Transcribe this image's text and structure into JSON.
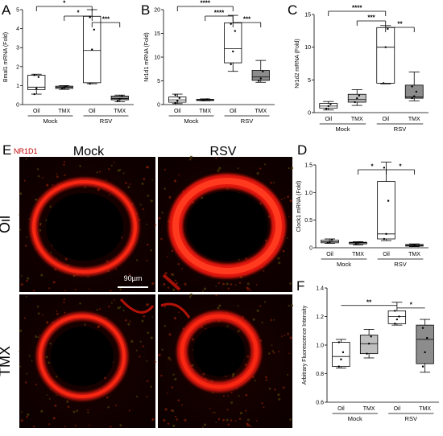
{
  "figure": {
    "micrograph_panel": {
      "letter": "E",
      "stain": "NR1D1",
      "columns": [
        "Mock",
        "RSV"
      ],
      "rows": [
        "Oil",
        "TMX"
      ],
      "scale_bar": "90µm"
    }
  },
  "colors": {
    "oil_box": "#ffffff",
    "tmx_box": "#bfbfbf",
    "rsv_tmx_box": "#8c8c8c",
    "tissue_red": "#e0160c",
    "stain_label": "#c00000"
  },
  "chart_data": [
    {
      "panel": "A",
      "type": "box",
      "ylabel": "Bmal1 mRNA (Fold)",
      "ylim": [
        0,
        5
      ],
      "yticks": [
        0,
        1,
        2,
        3,
        4,
        5
      ],
      "categories": [
        "Oil",
        "TMX",
        "Oil",
        "TMX"
      ],
      "groups": [
        "Mock",
        "RSV"
      ],
      "boxes": [
        {
          "min": 0.55,
          "q1": 0.78,
          "median": 0.92,
          "q3": 1.55,
          "max": 1.6,
          "points": [
            0.55,
            0.85,
            1.45,
            1.55
          ]
        },
        {
          "min": 0.8,
          "q1": 0.85,
          "median": 0.92,
          "q3": 0.97,
          "max": 1.0,
          "points": [
            0.85,
            0.9,
            0.95
          ]
        },
        {
          "min": 1.1,
          "q1": 1.15,
          "median": 2.85,
          "q3": 4.65,
          "max": 5.0,
          "points": [
            1.1,
            2.9,
            3.95,
            4.6
          ]
        },
        {
          "min": 0.15,
          "q1": 0.25,
          "median": 0.32,
          "q3": 0.45,
          "max": 0.5,
          "points": [
            0.2,
            0.3,
            0.45
          ]
        }
      ],
      "significance": [
        {
          "from": 0,
          "to": 2,
          "label": "*"
        },
        {
          "from": 1,
          "to": 2,
          "label": "*"
        },
        {
          "from": 2,
          "to": 3,
          "label": "***"
        }
      ]
    },
    {
      "panel": "B",
      "type": "box",
      "ylabel": "Nr1d1 mRNA (Fold)",
      "ylim": [
        0,
        20
      ],
      "yticks": [
        0,
        5,
        10,
        15,
        20
      ],
      "categories": [
        "Oil",
        "TMX",
        "Oil",
        "TMX"
      ],
      "groups": [
        "Mock",
        "RSV"
      ],
      "boxes": [
        {
          "min": 0.2,
          "q1": 0.5,
          "median": 1.0,
          "q3": 1.6,
          "max": 2.2,
          "points": [
            0.3,
            0.8,
            1.4,
            2.0
          ]
        },
        {
          "min": 0.8,
          "q1": 0.9,
          "median": 1.0,
          "q3": 1.1,
          "max": 1.2,
          "points": [
            0.9,
            1.0,
            1.1
          ]
        },
        {
          "min": 7.0,
          "q1": 8.8,
          "median": 11.8,
          "q3": 17.2,
          "max": 18.8,
          "points": [
            8.5,
            11.2,
            15.5,
            17.0
          ]
        },
        {
          "min": 4.7,
          "q1": 5.1,
          "median": 5.8,
          "q3": 7.2,
          "max": 9.3,
          "points": [
            5.0,
            5.5,
            7.0
          ]
        }
      ],
      "significance": [
        {
          "from": 0,
          "to": 2,
          "label": "****"
        },
        {
          "from": 1,
          "to": 2,
          "label": "****"
        },
        {
          "from": 2,
          "to": 3,
          "label": "***"
        }
      ]
    },
    {
      "panel": "C",
      "type": "box",
      "ylabel": "Nr1d2 mRNA (Fold)",
      "ylim": [
        0,
        15
      ],
      "yticks": [
        0,
        5,
        10,
        15
      ],
      "categories": [
        "Oil",
        "TMX",
        "Oil",
        "TMX"
      ],
      "groups": [
        "Mock",
        "RSV"
      ],
      "boxes": [
        {
          "min": 0.4,
          "q1": 0.7,
          "median": 1.0,
          "q3": 1.4,
          "max": 1.7,
          "points": [
            0.6,
            1.0,
            1.3
          ]
        },
        {
          "min": 1.1,
          "q1": 1.6,
          "median": 2.0,
          "q3": 2.8,
          "max": 3.5,
          "points": [
            1.6,
            2.2,
            2.6
          ]
        },
        {
          "min": 4.4,
          "q1": 4.5,
          "median": 10.0,
          "q3": 13.0,
          "max": 13.3,
          "points": [
            4.5,
            10.0,
            12.8
          ]
        },
        {
          "min": 1.8,
          "q1": 2.2,
          "median": 2.4,
          "q3": 4.2,
          "max": 6.2,
          "points": [
            2.2,
            2.5,
            3.2,
            4.0
          ]
        }
      ],
      "significance": [
        {
          "from": 0,
          "to": 2,
          "label": "****"
        },
        {
          "from": 1,
          "to": 2,
          "label": "***"
        },
        {
          "from": 2,
          "to": 3,
          "label": "**"
        }
      ]
    },
    {
      "panel": "D",
      "type": "box",
      "ylabel": "Clock1 mRNA (Fold)",
      "ylim": [
        0,
        15
      ],
      "yticks": [
        0,
        0.5,
        1.0,
        1.5
      ],
      "ytick_labels": [
        "0",
        "0.5",
        "1.0",
        "1.5"
      ],
      "categories": [
        "Oil",
        "TMX",
        "Oil",
        "TMX"
      ],
      "groups": [
        "Mock",
        "RSV"
      ],
      "boxes": [
        {
          "min": 0.8,
          "q1": 0.9,
          "median": 1.1,
          "q3": 1.4,
          "max": 1.6,
          "points": [
            0.9,
            1.1,
            1.4
          ]
        },
        {
          "min": 0.5,
          "q1": 0.7,
          "median": 0.9,
          "q3": 1.0,
          "max": 1.1,
          "points": [
            0.7,
            0.9,
            1.0
          ]
        },
        {
          "min": 1.3,
          "q1": 1.6,
          "median": 2.5,
          "q3": 12.0,
          "max": 15.5,
          "points": [
            1.6,
            2.5,
            8.5,
            14.5
          ]
        },
        {
          "min": 0.2,
          "q1": 0.3,
          "median": 0.4,
          "q3": 0.6,
          "max": 0.7,
          "points": [
            0.3,
            0.5
          ]
        }
      ],
      "significance": [
        {
          "from": 1,
          "to": 2,
          "label": "*"
        },
        {
          "from": 2,
          "to": 3,
          "label": "*"
        }
      ]
    },
    {
      "panel": "F",
      "type": "box",
      "ylabel": "Arbitrary Fluorescence  Intensity",
      "ylim": [
        0.6,
        1.4
      ],
      "yticks": [
        0.6,
        0.8,
        1.0,
        1.2,
        1.4
      ],
      "ytick_labels": [
        "0.6",
        "0.8",
        "1.0",
        "1.2",
        "1.4"
      ],
      "categories": [
        "Oil",
        "TMX",
        "Oil",
        "TMX"
      ],
      "groups": [
        "Mock",
        "RSV"
      ],
      "boxes": [
        {
          "min": 0.84,
          "q1": 0.85,
          "median": 0.92,
          "q3": 1.02,
          "max": 1.04,
          "points": [
            0.85,
            0.9,
            0.95,
            1.02
          ]
        },
        {
          "min": 0.91,
          "q1": 0.94,
          "median": 1.01,
          "q3": 1.07,
          "max": 1.11,
          "points": [
            0.94,
            1.01,
            1.06
          ]
        },
        {
          "min": 1.14,
          "q1": 1.15,
          "median": 1.2,
          "q3": 1.24,
          "max": 1.3,
          "points": [
            1.15,
            1.18,
            1.2,
            1.24
          ]
        },
        {
          "min": 0.81,
          "q1": 0.87,
          "median": 1.04,
          "q3": 1.14,
          "max": 1.18,
          "points": [
            0.85,
            0.95,
            1.05,
            1.12
          ]
        }
      ],
      "significance": [
        {
          "from": 0,
          "to": 2,
          "label": "**"
        },
        {
          "from": 2,
          "to": 3,
          "label": "*"
        }
      ]
    }
  ]
}
